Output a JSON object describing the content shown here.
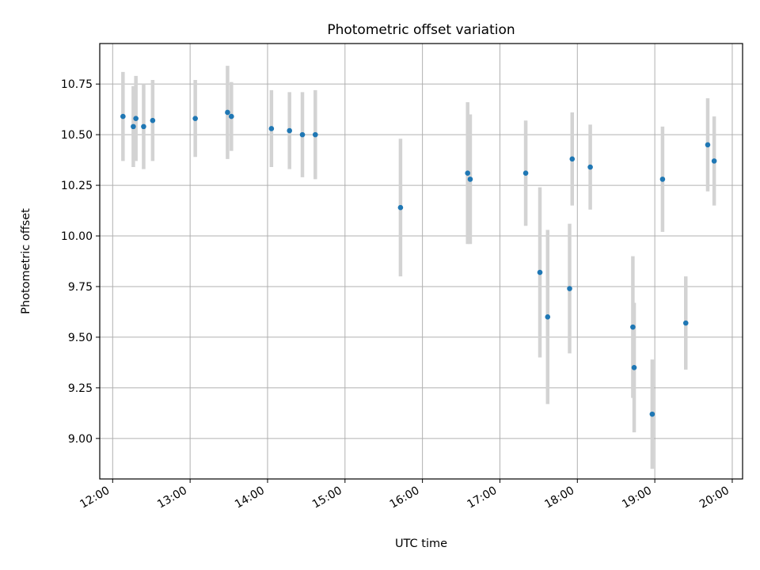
{
  "chart_data": {
    "type": "scatter",
    "title": "Photometric offset variation",
    "xlabel": "UTC time",
    "ylabel": "Photometric offset",
    "x_is_time": true,
    "x_unit": "hours UTC",
    "xlim": [
      "11:50",
      "20:08"
    ],
    "ylim": [
      8.8,
      10.95
    ],
    "x_ticks": [
      "12:00",
      "13:00",
      "14:00",
      "15:00",
      "16:00",
      "17:00",
      "18:00",
      "19:00",
      "20:00"
    ],
    "y_ticks": [
      "9.00",
      "9.25",
      "9.50",
      "9.75",
      "10.00",
      "10.25",
      "10.50",
      "10.75"
    ],
    "grid": true,
    "marker_color": "#1f77b4",
    "errorbar_color": "#d3d3d3",
    "points": [
      {
        "t": "12:08",
        "y": 10.59,
        "err": 0.22
      },
      {
        "t": "12:16",
        "y": 10.54,
        "err": 0.2
      },
      {
        "t": "12:18",
        "y": 10.58,
        "err": 0.21
      },
      {
        "t": "12:24",
        "y": 10.54,
        "err": 0.21
      },
      {
        "t": "12:31",
        "y": 10.57,
        "err": 0.2
      },
      {
        "t": "13:04",
        "y": 10.58,
        "err": 0.19
      },
      {
        "t": "13:29",
        "y": 10.61,
        "err": 0.23
      },
      {
        "t": "13:32",
        "y": 10.59,
        "err": 0.17
      },
      {
        "t": "14:03",
        "y": 10.53,
        "err": 0.19
      },
      {
        "t": "14:17",
        "y": 10.52,
        "err": 0.19
      },
      {
        "t": "14:27",
        "y": 10.5,
        "err": 0.21
      },
      {
        "t": "14:37",
        "y": 10.5,
        "err": 0.22
      },
      {
        "t": "15:43",
        "y": 10.14,
        "err": 0.34
      },
      {
        "t": "16:35",
        "y": 10.31,
        "err": 0.35
      },
      {
        "t": "16:37",
        "y": 10.28,
        "err": 0.32
      },
      {
        "t": "17:20",
        "y": 10.31,
        "err": 0.26
      },
      {
        "t": "17:31",
        "y": 9.82,
        "err": 0.42
      },
      {
        "t": "17:37",
        "y": 9.6,
        "err": 0.43
      },
      {
        "t": "17:54",
        "y": 9.74,
        "err": 0.32
      },
      {
        "t": "17:56",
        "y": 10.38,
        "err": 0.23
      },
      {
        "t": "18:10",
        "y": 10.34,
        "err": 0.21
      },
      {
        "t": "18:43",
        "y": 9.55,
        "err": 0.35
      },
      {
        "t": "18:44",
        "y": 9.35,
        "err": 0.32
      },
      {
        "t": "18:58",
        "y": 9.12,
        "err": 0.27
      },
      {
        "t": "19:06",
        "y": 10.28,
        "err": 0.26
      },
      {
        "t": "19:24",
        "y": 9.57,
        "err": 0.23
      },
      {
        "t": "19:41",
        "y": 10.45,
        "err": 0.23
      },
      {
        "t": "19:46",
        "y": 10.37,
        "err": 0.22
      }
    ]
  }
}
